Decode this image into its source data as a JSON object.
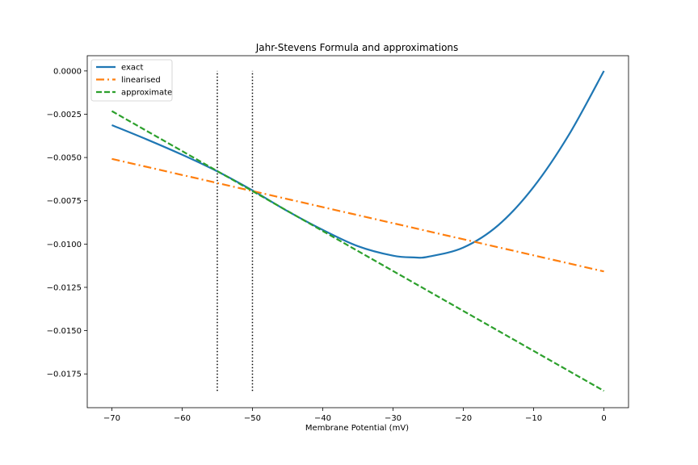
{
  "chart_data": {
    "type": "line",
    "title": "Jahr-Stevens Formula and approximations",
    "xlabel": "Membrane Potential (mV)",
    "ylabel": "",
    "xlim": [
      -73.5,
      3.5
    ],
    "ylim": [
      -0.01945,
      0.00088
    ],
    "xticks": [
      -70,
      -60,
      -50,
      -40,
      -30,
      -20,
      -10,
      0
    ],
    "xtick_labels": [
      "−70",
      "−60",
      "−50",
      "−40",
      "−30",
      "−20",
      "−10",
      "0"
    ],
    "yticks": [
      0.0,
      -0.0025,
      -0.005,
      -0.0075,
      -0.01,
      -0.0125,
      -0.015,
      -0.0175
    ],
    "ytick_labels": [
      "0.0000",
      "−0.0025",
      "−0.0050",
      "−0.0075",
      "−0.0100",
      "−0.0125",
      "−0.0150",
      "−0.0175"
    ],
    "legend_position": "upper-left",
    "series": [
      {
        "name": "exact",
        "style": "solid",
        "color": "#1f77b4",
        "x": [
          -70,
          -65,
          -60,
          -55,
          -50,
          -45,
          -40,
          -35,
          -30,
          -27,
          -25,
          -20,
          -15,
          -10,
          -5,
          0
        ],
        "y": [
          -0.00313,
          -0.00396,
          -0.00484,
          -0.0058,
          -0.0069,
          -0.0081,
          -0.00918,
          -0.01012,
          -0.01067,
          -0.01077,
          -0.01073,
          -0.0102,
          -0.0089,
          -0.0067,
          -0.0037,
          0.0
        ]
      },
      {
        "name": "linearised",
        "style": "dashdot",
        "color": "#ff7f0e",
        "x": [
          -70,
          0
        ],
        "y": [
          -0.00508,
          -0.01158
        ]
      },
      {
        "name": "approximate",
        "style": "dashed",
        "color": "#2ca02c",
        "x": [
          -70,
          0
        ],
        "y": [
          -0.00232,
          -0.01848
        ]
      }
    ],
    "vertical_lines": [
      {
        "x": -55,
        "y_from": -0.01848,
        "y_to": 0.0,
        "style": "dotted",
        "color": "#000000"
      },
      {
        "x": -50,
        "y_from": -0.01848,
        "y_to": 0.0,
        "style": "dotted",
        "color": "#000000"
      }
    ]
  }
}
